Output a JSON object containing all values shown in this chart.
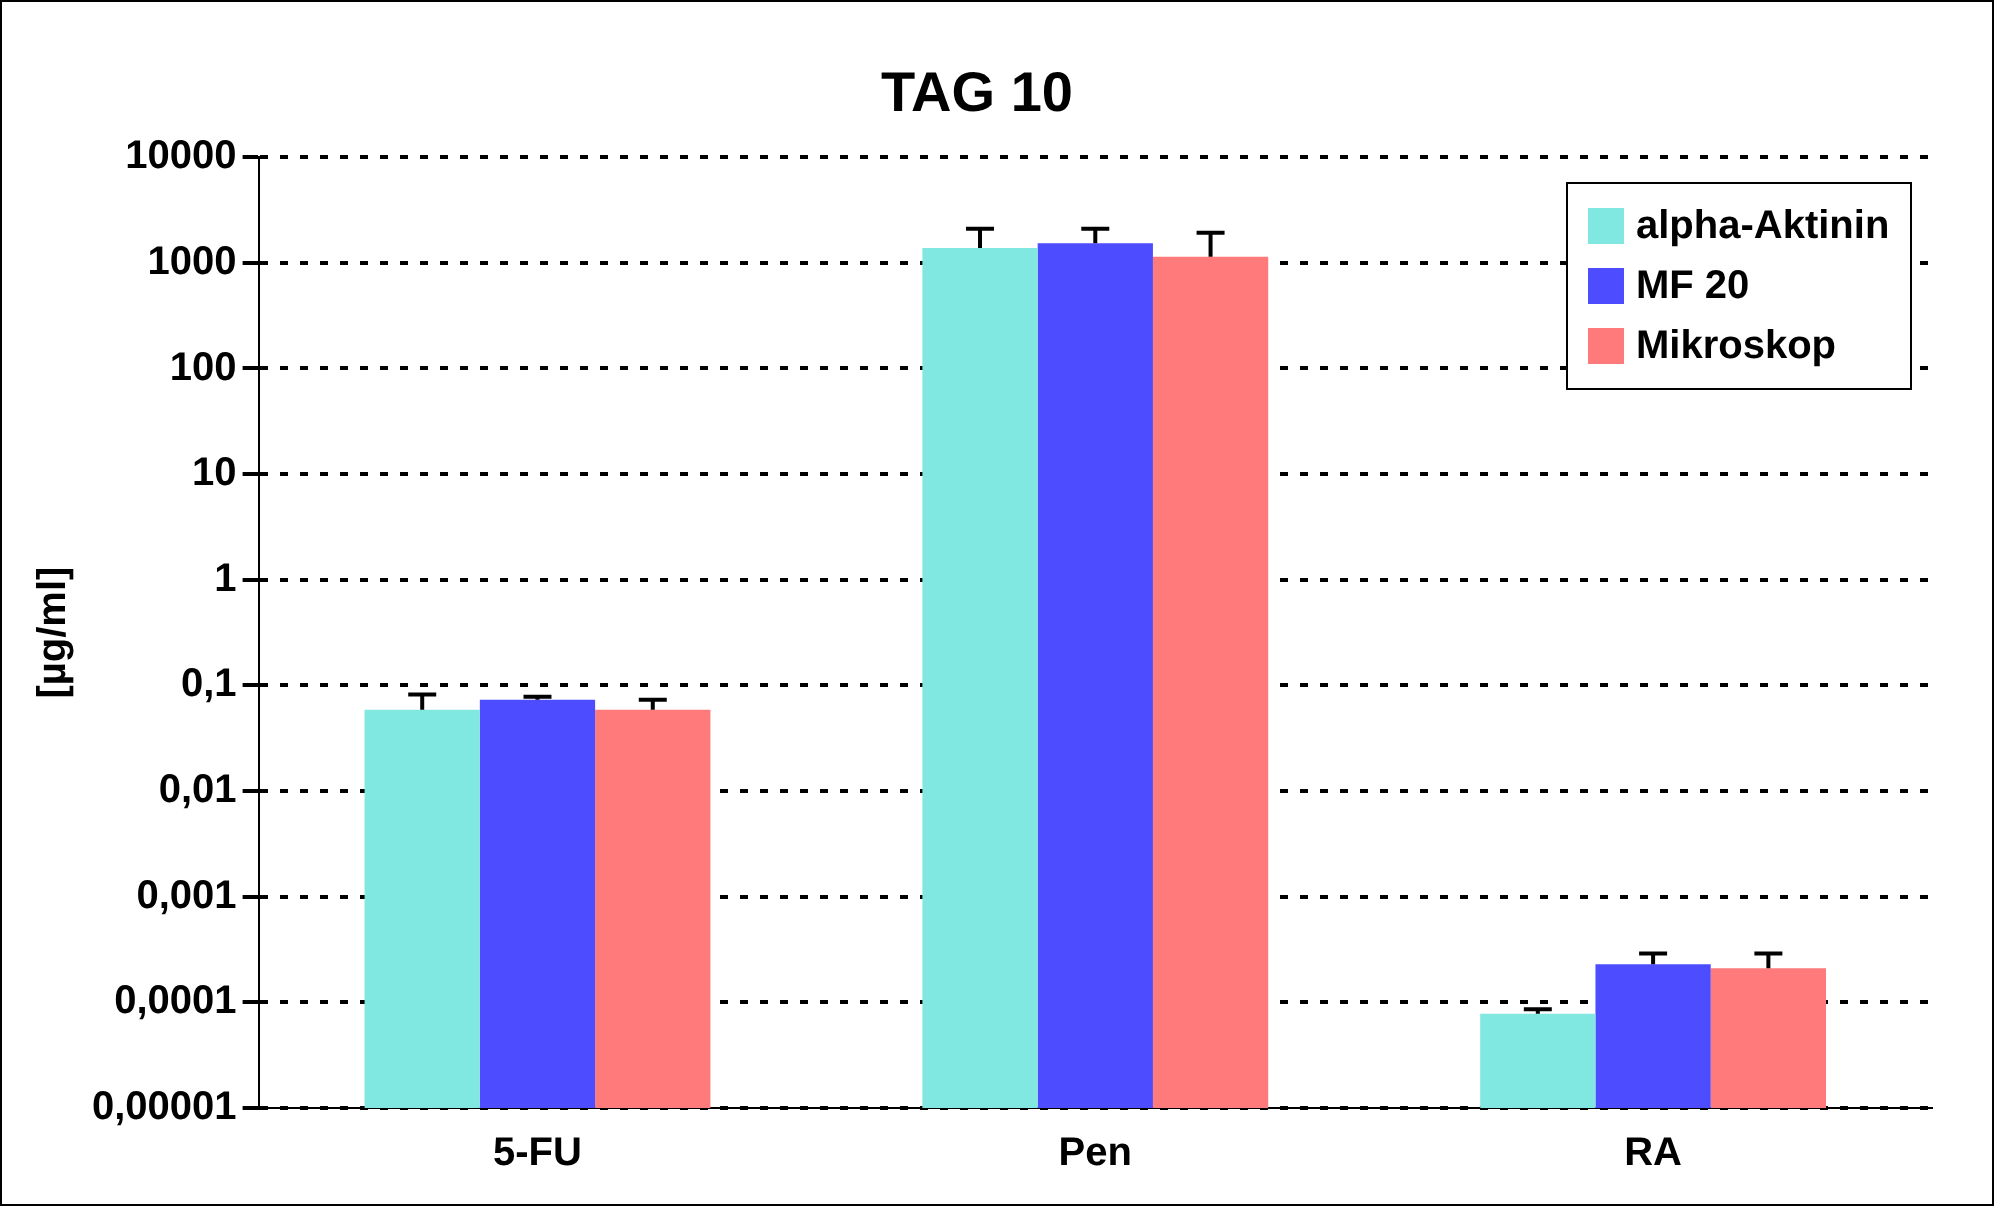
{
  "chart_data": {
    "type": "bar",
    "title": "TAG 10",
    "ylabel": "[µg/ml]",
    "categories": [
      "5-FU",
      "Pen",
      "RA"
    ],
    "series": [
      {
        "name": "alpha-Aktinin",
        "color": "#80e8e0",
        "values": [
          0.059,
          1380,
          7.8e-05
        ],
        "errors": [
          [
            0.059,
            0.082
          ],
          [
            1380,
            2100
          ],
          [
            7.8e-05,
            8.6e-05
          ]
        ]
      },
      {
        "name": "MF 20",
        "color": "#4d4dff",
        "values": [
          0.073,
          1530,
          0.00023
        ],
        "errors": [
          [
            0.073,
            0.078
          ],
          [
            1530,
            2100
          ],
          [
            0.00023,
            0.00029
          ]
        ]
      },
      {
        "name": "Mikroskop",
        "color": "#ff7a7a",
        "values": [
          0.059,
          1140,
          0.00021
        ],
        "errors": [
          [
            0.059,
            0.073
          ],
          [
            1140,
            1930
          ],
          [
            0.00021,
            0.00029
          ]
        ]
      }
    ],
    "log": "y",
    "ylim": [
      1e-05,
      10000
    ],
    "yticks": [
      {
        "value": 1e-05,
        "label": "0,00001"
      },
      {
        "value": 0.0001,
        "label": "0,0001"
      },
      {
        "value": 0.001,
        "label": "0,001"
      },
      {
        "value": 0.01,
        "label": "0,01"
      },
      {
        "value": 0.1,
        "label": "0,1"
      },
      1,
      10,
      100,
      1000,
      10000
    ],
    "grid": "y",
    "legend": "top right"
  }
}
